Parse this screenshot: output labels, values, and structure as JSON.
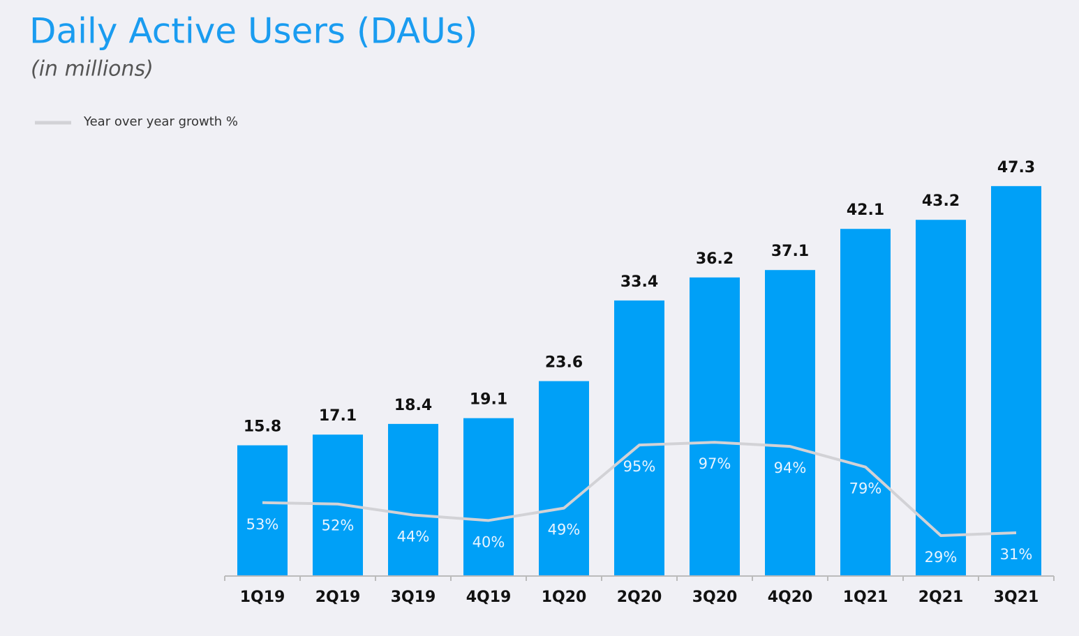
{
  "chart_data": {
    "type": "bar",
    "title": "Daily Active Users (DAUs)",
    "subtitle": "(in millions)",
    "categories": [
      "1Q19",
      "2Q19",
      "3Q19",
      "4Q19",
      "1Q20",
      "2Q20",
      "3Q20",
      "4Q20",
      "1Q21",
      "2Q21",
      "3Q21"
    ],
    "series": [
      {
        "type": "bar",
        "color": "#00a0f7",
        "values": [
          15.8,
          17.1,
          18.4,
          19.1,
          23.6,
          33.4,
          36.2,
          37.1,
          42.1,
          43.2,
          47.3
        ]
      },
      {
        "type": "line",
        "axis": "y2",
        "name": "Year over year growth %",
        "color": "#d2d2d6",
        "values": [
          53,
          52,
          44,
          40,
          49,
          95,
          97,
          94,
          79,
          29,
          31
        ],
        "value_labels": [
          "53%",
          "52%",
          "44%",
          "40%",
          "49%",
          "95%",
          "97%",
          "94%",
          "79%",
          "29%",
          "31%"
        ]
      }
    ],
    "ylim": [
      0,
      50
    ],
    "y2lim": [
      0,
      300
    ],
    "legend": "top-left"
  }
}
